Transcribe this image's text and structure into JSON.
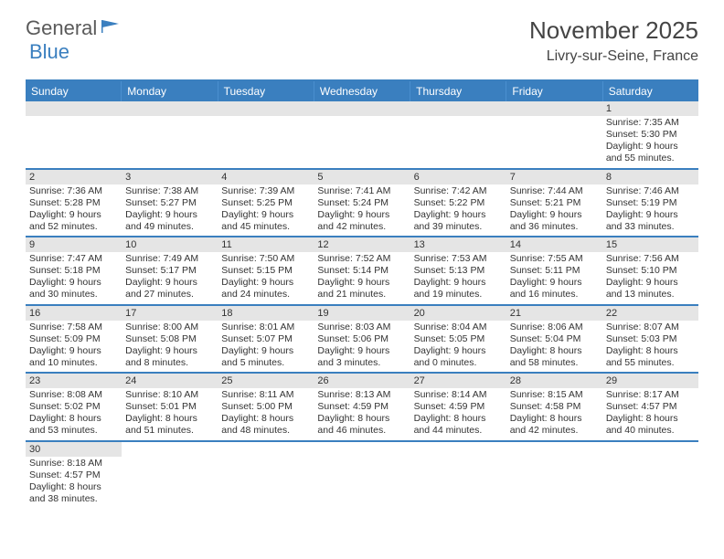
{
  "logo": {
    "text1": "General",
    "text2": "Blue"
  },
  "title": "November 2025",
  "location": "Livry-sur-Seine, France",
  "colors": {
    "header_bar": "#3a7fbf",
    "daynum_bg": "#e5e5e5",
    "text": "#333333",
    "logo_gray": "#5a5a5a",
    "logo_blue": "#3a7fbf"
  },
  "weekdays": [
    "Sunday",
    "Monday",
    "Tuesday",
    "Wednesday",
    "Thursday",
    "Friday",
    "Saturday"
  ],
  "weeks": [
    [
      null,
      null,
      null,
      null,
      null,
      null,
      {
        "n": "1",
        "sunrise": "7:35 AM",
        "sunset": "5:30 PM",
        "daylight": "9 hours and 55 minutes."
      }
    ],
    [
      {
        "n": "2",
        "sunrise": "7:36 AM",
        "sunset": "5:28 PM",
        "daylight": "9 hours and 52 minutes."
      },
      {
        "n": "3",
        "sunrise": "7:38 AM",
        "sunset": "5:27 PM",
        "daylight": "9 hours and 49 minutes."
      },
      {
        "n": "4",
        "sunrise": "7:39 AM",
        "sunset": "5:25 PM",
        "daylight": "9 hours and 45 minutes."
      },
      {
        "n": "5",
        "sunrise": "7:41 AM",
        "sunset": "5:24 PM",
        "daylight": "9 hours and 42 minutes."
      },
      {
        "n": "6",
        "sunrise": "7:42 AM",
        "sunset": "5:22 PM",
        "daylight": "9 hours and 39 minutes."
      },
      {
        "n": "7",
        "sunrise": "7:44 AM",
        "sunset": "5:21 PM",
        "daylight": "9 hours and 36 minutes."
      },
      {
        "n": "8",
        "sunrise": "7:46 AM",
        "sunset": "5:19 PM",
        "daylight": "9 hours and 33 minutes."
      }
    ],
    [
      {
        "n": "9",
        "sunrise": "7:47 AM",
        "sunset": "5:18 PM",
        "daylight": "9 hours and 30 minutes."
      },
      {
        "n": "10",
        "sunrise": "7:49 AM",
        "sunset": "5:17 PM",
        "daylight": "9 hours and 27 minutes."
      },
      {
        "n": "11",
        "sunrise": "7:50 AM",
        "sunset": "5:15 PM",
        "daylight": "9 hours and 24 minutes."
      },
      {
        "n": "12",
        "sunrise": "7:52 AM",
        "sunset": "5:14 PM",
        "daylight": "9 hours and 21 minutes."
      },
      {
        "n": "13",
        "sunrise": "7:53 AM",
        "sunset": "5:13 PM",
        "daylight": "9 hours and 19 minutes."
      },
      {
        "n": "14",
        "sunrise": "7:55 AM",
        "sunset": "5:11 PM",
        "daylight": "9 hours and 16 minutes."
      },
      {
        "n": "15",
        "sunrise": "7:56 AM",
        "sunset": "5:10 PM",
        "daylight": "9 hours and 13 minutes."
      }
    ],
    [
      {
        "n": "16",
        "sunrise": "7:58 AM",
        "sunset": "5:09 PM",
        "daylight": "9 hours and 10 minutes."
      },
      {
        "n": "17",
        "sunrise": "8:00 AM",
        "sunset": "5:08 PM",
        "daylight": "9 hours and 8 minutes."
      },
      {
        "n": "18",
        "sunrise": "8:01 AM",
        "sunset": "5:07 PM",
        "daylight": "9 hours and 5 minutes."
      },
      {
        "n": "19",
        "sunrise": "8:03 AM",
        "sunset": "5:06 PM",
        "daylight": "9 hours and 3 minutes."
      },
      {
        "n": "20",
        "sunrise": "8:04 AM",
        "sunset": "5:05 PM",
        "daylight": "9 hours and 0 minutes."
      },
      {
        "n": "21",
        "sunrise": "8:06 AM",
        "sunset": "5:04 PM",
        "daylight": "8 hours and 58 minutes."
      },
      {
        "n": "22",
        "sunrise": "8:07 AM",
        "sunset": "5:03 PM",
        "daylight": "8 hours and 55 minutes."
      }
    ],
    [
      {
        "n": "23",
        "sunrise": "8:08 AM",
        "sunset": "5:02 PM",
        "daylight": "8 hours and 53 minutes."
      },
      {
        "n": "24",
        "sunrise": "8:10 AM",
        "sunset": "5:01 PM",
        "daylight": "8 hours and 51 minutes."
      },
      {
        "n": "25",
        "sunrise": "8:11 AM",
        "sunset": "5:00 PM",
        "daylight": "8 hours and 48 minutes."
      },
      {
        "n": "26",
        "sunrise": "8:13 AM",
        "sunset": "4:59 PM",
        "daylight": "8 hours and 46 minutes."
      },
      {
        "n": "27",
        "sunrise": "8:14 AM",
        "sunset": "4:59 PM",
        "daylight": "8 hours and 44 minutes."
      },
      {
        "n": "28",
        "sunrise": "8:15 AM",
        "sunset": "4:58 PM",
        "daylight": "8 hours and 42 minutes."
      },
      {
        "n": "29",
        "sunrise": "8:17 AM",
        "sunset": "4:57 PM",
        "daylight": "8 hours and 40 minutes."
      }
    ],
    [
      {
        "n": "30",
        "sunrise": "8:18 AM",
        "sunset": "4:57 PM",
        "daylight": "8 hours and 38 minutes."
      },
      null,
      null,
      null,
      null,
      null,
      null
    ]
  ],
  "labels": {
    "sunrise": "Sunrise:",
    "sunset": "Sunset:",
    "daylight": "Daylight:"
  }
}
